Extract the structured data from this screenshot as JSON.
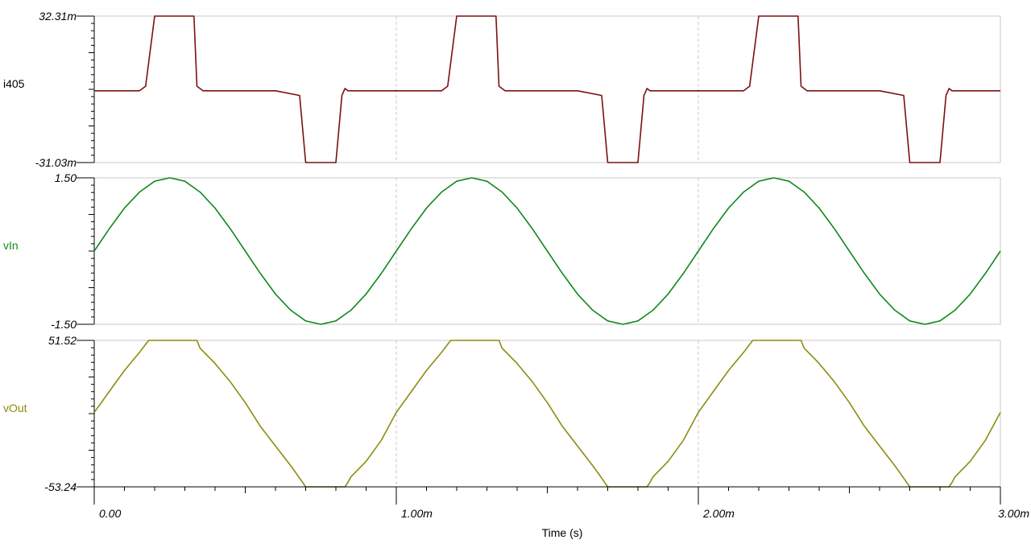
{
  "chart_data": [
    {
      "type": "line",
      "series": [
        {
          "name": "i405"
        }
      ],
      "ylabel": "i405",
      "y_ticks": [
        "32.31m",
        "-31.03m"
      ],
      "ylim": [
        -0.03103,
        0.03231
      ],
      "color": "#7b1010",
      "x": [
        0,
        0.1,
        0.15,
        0.17,
        0.2,
        0.33,
        0.34,
        0.36,
        0.5,
        0.6,
        0.68,
        0.7,
        0.8,
        0.82,
        0.83,
        0.84,
        1.0,
        1.1,
        1.15,
        1.17,
        1.2,
        1.33,
        1.34,
        1.36,
        1.5,
        1.6,
        1.68,
        1.7,
        1.8,
        1.82,
        1.83,
        1.84,
        2.0,
        2.1,
        2.15,
        2.17,
        2.2,
        2.33,
        2.34,
        2.36,
        2.5,
        2.6,
        2.68,
        2.7,
        2.8,
        2.82,
        2.83,
        2.84,
        3.0
      ],
      "values": [
        0.0,
        0.0,
        0.0,
        0.002,
        0.03231,
        0.03231,
        0.002,
        0.0,
        0.0,
        0.0,
        -0.002,
        -0.03103,
        -0.03103,
        -0.002,
        0.001,
        0.0,
        0.0,
        0.0,
        0.0,
        0.002,
        0.03231,
        0.03231,
        0.002,
        0.0,
        0.0,
        0.0,
        -0.002,
        -0.03103,
        -0.03103,
        -0.002,
        0.001,
        0.0,
        0.0,
        0.0,
        0.0,
        0.002,
        0.03231,
        0.03231,
        0.002,
        0.0,
        0.0,
        0.0,
        -0.002,
        -0.03103,
        -0.03103,
        -0.002,
        0.001,
        0.0,
        0.0
      ]
    },
    {
      "type": "line",
      "series": [
        {
          "name": "vIn"
        }
      ],
      "ylabel": "vIn",
      "y_ticks": [
        "1.50",
        "-1.50"
      ],
      "ylim": [
        -1.5,
        1.5
      ],
      "color": "#118a1a",
      "x": [
        0,
        0.05,
        0.1,
        0.15,
        0.2,
        0.25,
        0.3,
        0.35,
        0.4,
        0.45,
        0.5,
        0.55,
        0.6,
        0.65,
        0.7,
        0.75,
        0.8,
        0.85,
        0.9,
        0.95,
        1.0,
        1.05,
        1.1,
        1.15,
        1.2,
        1.25,
        1.3,
        1.35,
        1.4,
        1.45,
        1.5,
        1.55,
        1.6,
        1.65,
        1.7,
        1.75,
        1.8,
        1.85,
        1.9,
        1.95,
        2.0,
        2.05,
        2.1,
        2.15,
        2.2,
        2.25,
        2.3,
        2.35,
        2.4,
        2.45,
        2.5,
        2.55,
        2.6,
        2.65,
        2.7,
        2.75,
        2.8,
        2.85,
        2.9,
        2.95,
        3.0
      ],
      "values": [
        0.0,
        0.46,
        0.88,
        1.21,
        1.43,
        1.5,
        1.43,
        1.21,
        0.88,
        0.46,
        0.0,
        -0.46,
        -0.88,
        -1.21,
        -1.43,
        -1.5,
        -1.43,
        -1.21,
        -0.88,
        -0.46,
        0.0,
        0.46,
        0.88,
        1.21,
        1.43,
        1.5,
        1.43,
        1.21,
        0.88,
        0.46,
        0.0,
        -0.46,
        -0.88,
        -1.21,
        -1.43,
        -1.5,
        -1.43,
        -1.21,
        -0.88,
        -0.46,
        0.0,
        0.46,
        0.88,
        1.21,
        1.43,
        1.5,
        1.43,
        1.21,
        0.88,
        0.46,
        0.0,
        -0.46,
        -0.88,
        -1.21,
        -1.43,
        -1.5,
        -1.43,
        -1.21,
        -0.88,
        -0.46,
        0.0
      ]
    },
    {
      "type": "line",
      "series": [
        {
          "name": "vOut"
        }
      ],
      "ylabel": "vOut",
      "y_ticks": [
        "51.52",
        "-53.24"
      ],
      "ylim": [
        -53.24,
        51.52
      ],
      "color": "#8c8c10",
      "x": [
        0,
        0.05,
        0.1,
        0.15,
        0.18,
        0.2,
        0.25,
        0.3,
        0.34,
        0.35,
        0.4,
        0.45,
        0.5,
        0.55,
        0.6,
        0.65,
        0.68,
        0.7,
        0.75,
        0.8,
        0.83,
        0.84,
        0.85,
        0.9,
        0.95,
        1.0,
        1.05,
        1.1,
        1.15,
        1.18,
        1.2,
        1.25,
        1.3,
        1.34,
        1.35,
        1.4,
        1.45,
        1.5,
        1.55,
        1.6,
        1.65,
        1.68,
        1.7,
        1.75,
        1.8,
        1.83,
        1.84,
        1.85,
        1.9,
        1.95,
        2.0,
        2.05,
        2.1,
        2.15,
        2.18,
        2.2,
        2.25,
        2.3,
        2.34,
        2.35,
        2.4,
        2.45,
        2.5,
        2.55,
        2.6,
        2.65,
        2.68,
        2.7,
        2.75,
        2.8,
        2.83,
        2.84,
        2.85,
        2.9,
        2.95,
        3.0
      ],
      "values": [
        0.0,
        15.0,
        30.0,
        43.0,
        51.52,
        51.52,
        51.52,
        51.52,
        51.52,
        46.0,
        35.0,
        22.0,
        7.0,
        -10.0,
        -24.0,
        -38.0,
        -47.0,
        -53.24,
        -53.24,
        -53.24,
        -53.24,
        -50.0,
        -46.0,
        -35.0,
        -20.0,
        0.0,
        15.0,
        30.0,
        43.0,
        51.52,
        51.52,
        51.52,
        51.52,
        51.52,
        46.0,
        35.0,
        22.0,
        7.0,
        -10.0,
        -24.0,
        -38.0,
        -47.0,
        -53.24,
        -53.24,
        -53.24,
        -53.24,
        -50.0,
        -46.0,
        -35.0,
        -20.0,
        0.0,
        15.0,
        30.0,
        43.0,
        51.52,
        51.52,
        51.52,
        51.52,
        51.52,
        46.0,
        35.0,
        22.0,
        7.0,
        -10.0,
        -24.0,
        -38.0,
        -47.0,
        -53.24,
        -53.24,
        -53.24,
        -53.24,
        -50.0,
        -46.0,
        -35.0,
        -20.0,
        0.0
      ]
    }
  ],
  "x_axis": {
    "title": "Time (s)",
    "ticks": [
      {
        "value": 0,
        "label": "0.00"
      },
      {
        "value": 1,
        "label": "1.00m"
      },
      {
        "value": 2,
        "label": "2.00m"
      },
      {
        "value": 3,
        "label": "3.00m"
      }
    ],
    "range": [
      0,
      3
    ]
  }
}
